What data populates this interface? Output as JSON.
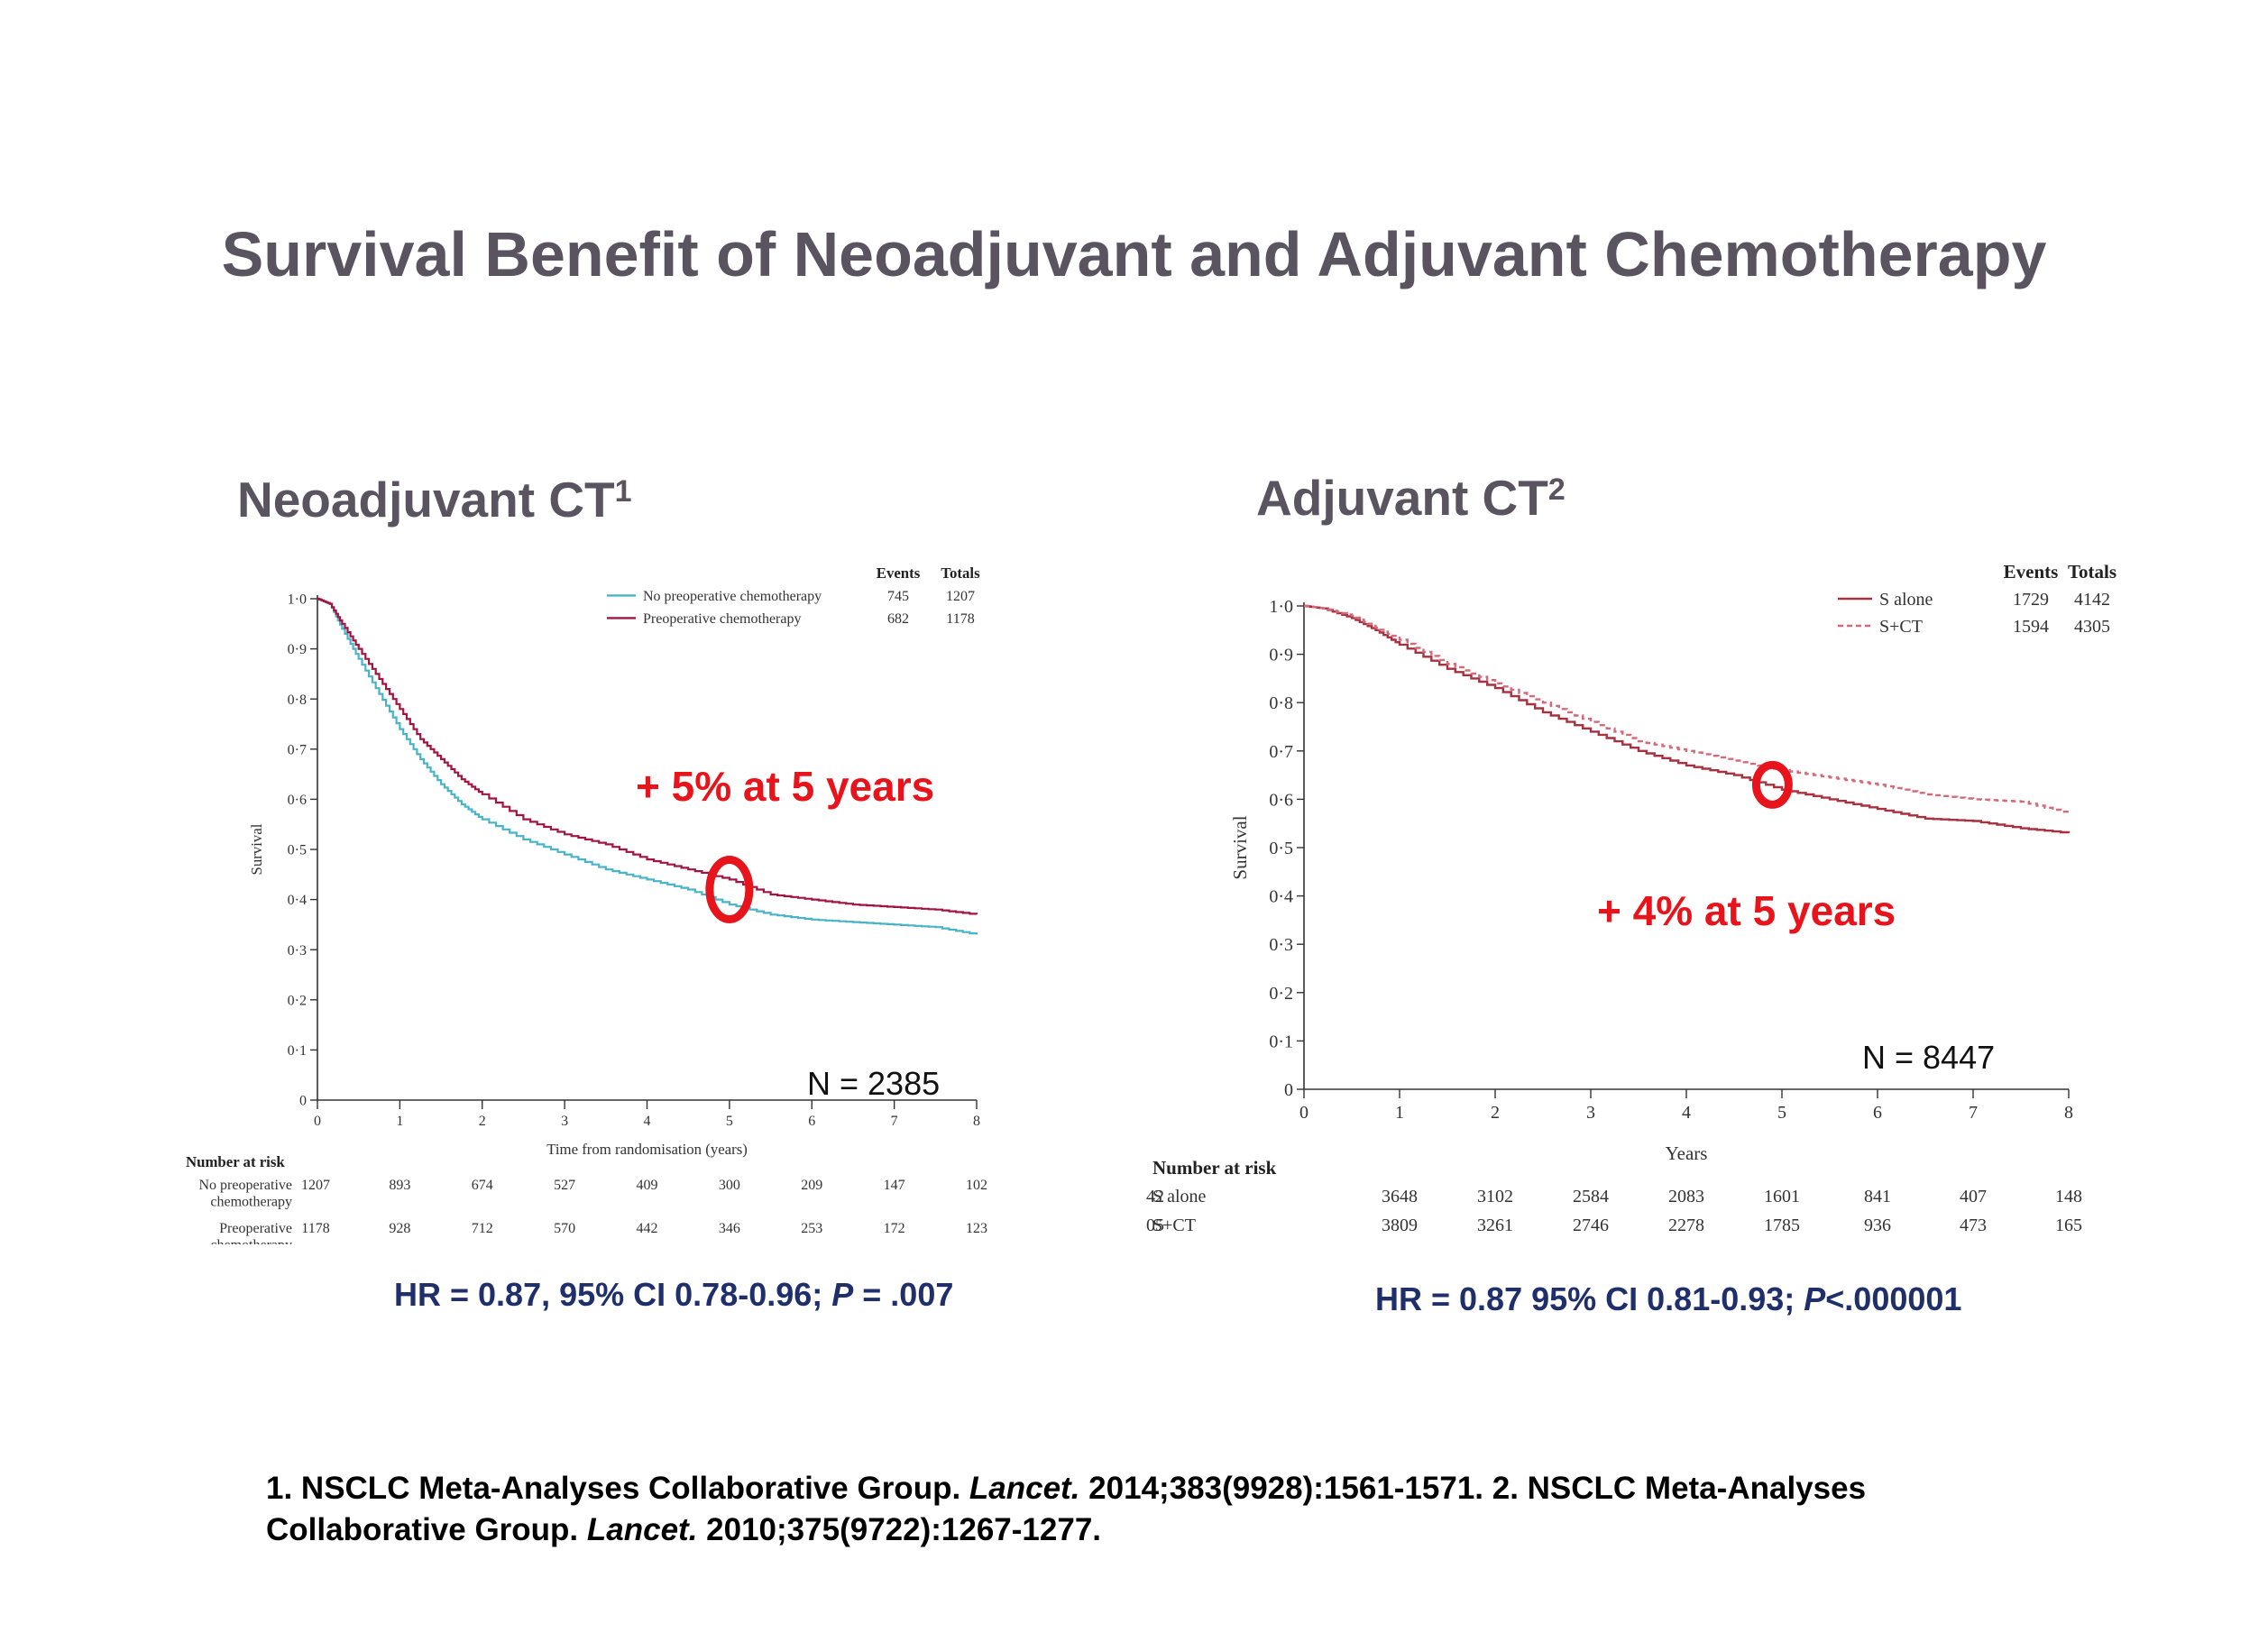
{
  "slide": {
    "title": "Survival Benefit of  Neoadjuvant and Adjuvant Chemotherapy",
    "footnote": {
      "part1": "1. NSCLC Meta-Analyses Collaborative Group. ",
      "journal1": "Lancet.",
      "part2": " 2014;383(9928):1561-1571. 2. NSCLC Meta-Analyses Collaborative Group. ",
      "journal2": "Lancet.",
      "part3": " 2010;375(9722):1267-1277."
    }
  },
  "left_panel": {
    "heading": "Neoadjuvant CT",
    "heading_sup": "1",
    "hr": {
      "pre": "HR = 0.87, 95% CI 0.78-0.96; ",
      "p_label": "P",
      "post": " = .007"
    },
    "callout": "+ 5% at 5 years",
    "n_label": "N = 2385",
    "number_at_risk_label": "Number at risk",
    "legend_header": {
      "events": "Events",
      "totals": "Totals"
    }
  },
  "right_panel": {
    "heading": "Adjuvant CT",
    "heading_sup": "2",
    "hr": {
      "pre": "HR = 0.87 95% CI 0.81-0.93; ",
      "p_label": "P",
      "post": "<.000001"
    },
    "callout": "+ 4% at 5 years",
    "n_label": "N = 8447",
    "number_at_risk_label": "Number at risk",
    "legend_header": {
      "events": "Events",
      "totals": "Totals"
    }
  },
  "colors": {
    "title": "#5a5360",
    "hr_text": "#1f2f6b",
    "callout": "#e8141c",
    "no_preop": "#49b3c8",
    "preop": "#a3133f",
    "s_alone": "#a8303f",
    "s_ct": "#d4697a"
  },
  "chart_data": [
    {
      "type": "line",
      "title": "",
      "xlabel": "Time from randomisation (years)",
      "ylabel": "Survival",
      "xlim": [
        0,
        8
      ],
      "ylim": [
        0,
        1
      ],
      "x_ticks": [
        "0",
        "1",
        "2",
        "3",
        "4",
        "5",
        "6",
        "7",
        "8"
      ],
      "y_ticks": [
        "0",
        "0·1",
        "0·2",
        "0·3",
        "0·4",
        "0·5",
        "0·6",
        "0·7",
        "0·8",
        "0·9",
        "1·0"
      ],
      "grid": false,
      "legend_position": "top-right",
      "highlight": {
        "x": 5,
        "y": 0.42
      },
      "series": [
        {
          "name": "No preoperative chemotherapy",
          "events": "745",
          "totals": "1207",
          "style": "solid",
          "color": "#49b3c8",
          "x": [
            0,
            0.15,
            0.3,
            0.5,
            0.75,
            1,
            1.25,
            1.5,
            1.75,
            2,
            2.5,
            3,
            3.5,
            4,
            4.5,
            5,
            5.5,
            6,
            6.5,
            7,
            7.5,
            8
          ],
          "y": [
            1.0,
            0.99,
            0.94,
            0.88,
            0.81,
            0.74,
            0.68,
            0.63,
            0.59,
            0.56,
            0.52,
            0.49,
            0.46,
            0.44,
            0.42,
            0.39,
            0.37,
            0.36,
            0.355,
            0.35,
            0.345,
            0.33
          ],
          "at_risk_label": [
            "No preoperative",
            "chemotherapy"
          ],
          "at_risk": [
            "1207",
            "893",
            "674",
            "527",
            "409",
            "300",
            "209",
            "147",
            "102"
          ]
        },
        {
          "name": "Preoperative chemotherapy",
          "events": "682",
          "totals": "1178",
          "style": "solid",
          "color": "#a3133f",
          "x": [
            0,
            0.15,
            0.3,
            0.5,
            0.75,
            1,
            1.25,
            1.5,
            1.75,
            2,
            2.5,
            3,
            3.5,
            4,
            4.5,
            5,
            5.5,
            6,
            6.5,
            7,
            7.5,
            8
          ],
          "y": [
            1.0,
            0.99,
            0.95,
            0.9,
            0.84,
            0.78,
            0.72,
            0.68,
            0.64,
            0.61,
            0.56,
            0.53,
            0.51,
            0.48,
            0.46,
            0.44,
            0.41,
            0.4,
            0.39,
            0.385,
            0.38,
            0.37
          ],
          "at_risk_label": [
            "Preoperative",
            "chemotherapy"
          ],
          "at_risk": [
            "1178",
            "928",
            "712",
            "570",
            "442",
            "346",
            "253",
            "172",
            "123"
          ]
        }
      ]
    },
    {
      "type": "line",
      "title": "",
      "xlabel": "Years",
      "ylabel": "Survival",
      "xlim": [
        0,
        8
      ],
      "ylim": [
        0,
        1
      ],
      "x_ticks": [
        "0",
        "1",
        "2",
        "3",
        "4",
        "5",
        "6",
        "7",
        "8"
      ],
      "y_ticks": [
        "0",
        "0·1",
        "0·2",
        "0·3",
        "0·4",
        "0·5",
        "0·6",
        "0·7",
        "0·8",
        "0·9",
        "1·0"
      ],
      "grid": false,
      "legend_position": "top-right",
      "highlight": {
        "x": 4.9,
        "y": 0.63
      },
      "series": [
        {
          "name": "S alone",
          "events": "1729",
          "totals": "4142",
          "style": "solid",
          "color": "#a8303f",
          "x": [
            0,
            0.2,
            0.5,
            0.75,
            1,
            1.5,
            2,
            2.5,
            3,
            3.5,
            4,
            4.5,
            5,
            5.5,
            6,
            6.5,
            7,
            7.5,
            8
          ],
          "y": [
            1.0,
            0.995,
            0.975,
            0.95,
            0.92,
            0.87,
            0.83,
            0.78,
            0.74,
            0.7,
            0.67,
            0.65,
            0.62,
            0.6,
            0.58,
            0.56,
            0.555,
            0.54,
            0.53
          ],
          "at_risk_label": [
            "S alone"
          ],
          "at_risk": [
            "4142",
            "3648",
            "3102",
            "2584",
            "2083",
            "1601",
            "841",
            "407",
            "148"
          ]
        },
        {
          "name": "S+CT",
          "events": "1594",
          "totals": "4305",
          "style": "dashed",
          "color": "#d4697a",
          "x": [
            0,
            0.2,
            0.5,
            0.75,
            1,
            1.5,
            2,
            2.5,
            3,
            3.5,
            4,
            4.5,
            5,
            5.5,
            6,
            6.5,
            7,
            7.5,
            8
          ],
          "y": [
            1.0,
            0.995,
            0.98,
            0.955,
            0.93,
            0.88,
            0.84,
            0.8,
            0.76,
            0.72,
            0.7,
            0.68,
            0.66,
            0.645,
            0.63,
            0.61,
            0.6,
            0.595,
            0.57
          ],
          "at_risk_label": [
            "S+CT"
          ],
          "at_risk": [
            "4305",
            "3809",
            "3261",
            "2746",
            "2278",
            "1785",
            "936",
            "473",
            "165"
          ]
        }
      ]
    }
  ]
}
